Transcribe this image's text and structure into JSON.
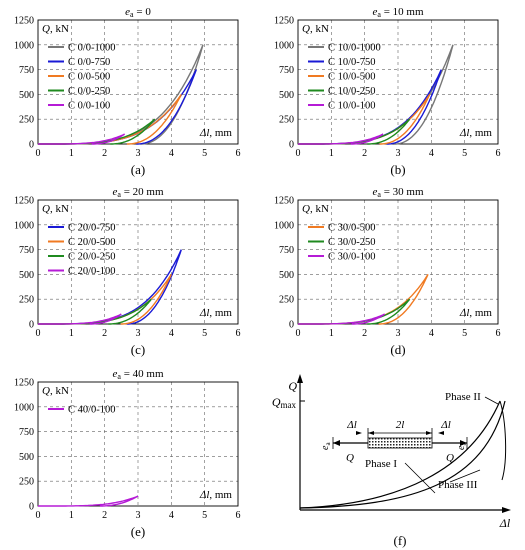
{
  "chart_data": [
    {
      "type": "line",
      "panel_label": "(a)",
      "title": "e_a = 0",
      "title_parts": {
        "sym": "e",
        "sub": "a",
        "rest": " = 0"
      },
      "ylabel": "Q, kN",
      "xlabel": "Δl, mm",
      "xlim": [
        0,
        6
      ],
      "ylim": [
        0,
        1250
      ],
      "xticks": [
        "0",
        "1",
        "2",
        "3",
        "4",
        "5",
        "6"
      ],
      "yticks": [
        "0",
        "250",
        "500",
        "750",
        "1000",
        "1250"
      ],
      "grid": "dashed",
      "legend_position": "top-left",
      "series": [
        {
          "name": "C 0/0-1000",
          "color": "#777777",
          "peak_x": 4.95,
          "peak_y": 1000
        },
        {
          "name": "C 0/0-750",
          "color": "#1a1ad6",
          "peak_x": 4.75,
          "peak_y": 750
        },
        {
          "name": "C 0/0-500",
          "color": "#f07a22",
          "peak_x": 4.3,
          "peak_y": 500
        },
        {
          "name": "C 0/0-250",
          "color": "#1f8a1f",
          "peak_x": 3.5,
          "peak_y": 250
        },
        {
          "name": "C 0/0-100",
          "color": "#b51bd6",
          "peak_x": 2.6,
          "peak_y": 100
        }
      ]
    },
    {
      "type": "line",
      "panel_label": "(b)",
      "title": "e_a = 10 mm",
      "title_parts": {
        "sym": "e",
        "sub": "a",
        "rest": " = 10 mm"
      },
      "ylabel": "Q, kN",
      "xlabel": "Δl, mm",
      "xlim": [
        0,
        6
      ],
      "ylim": [
        0,
        1250
      ],
      "xticks": [
        "0",
        "1",
        "2",
        "3",
        "4",
        "5",
        "6"
      ],
      "yticks": [
        "0",
        "250",
        "500",
        "750",
        "1000",
        "1250"
      ],
      "grid": "dashed",
      "legend_position": "top-left",
      "series": [
        {
          "name": "C 10/0-1000",
          "color": "#777777",
          "peak_x": 4.65,
          "peak_y": 1000
        },
        {
          "name": "C 10/0-750",
          "color": "#1a1ad6",
          "peak_x": 4.3,
          "peak_y": 750
        },
        {
          "name": "C 10/0-500",
          "color": "#f07a22",
          "peak_x": 3.95,
          "peak_y": 500
        },
        {
          "name": "C 10/0-250",
          "color": "#1f8a1f",
          "peak_x": 3.35,
          "peak_y": 250
        },
        {
          "name": "C 10/0-100",
          "color": "#b51bd6",
          "peak_x": 2.55,
          "peak_y": 100
        }
      ]
    },
    {
      "type": "line",
      "panel_label": "(c)",
      "title": "e_a = 20 mm",
      "title_parts": {
        "sym": "e",
        "sub": "a",
        "rest": " = 20 mm"
      },
      "ylabel": "Q, kN",
      "xlabel": "Δl, mm",
      "xlim": [
        0,
        6
      ],
      "ylim": [
        0,
        1250
      ],
      "xticks": [
        "0",
        "1",
        "2",
        "3",
        "4",
        "5",
        "6"
      ],
      "yticks": [
        "0",
        "250",
        "500",
        "750",
        "1000",
        "1250"
      ],
      "grid": "dashed",
      "legend_position": "top-left",
      "series": [
        {
          "name": "C 20/0-750",
          "color": "#1a1ad6",
          "peak_x": 4.3,
          "peak_y": 750
        },
        {
          "name": "C 20/0-500",
          "color": "#f07a22",
          "peak_x": 4.0,
          "peak_y": 500
        },
        {
          "name": "C 20/0-250",
          "color": "#1f8a1f",
          "peak_x": 3.4,
          "peak_y": 250
        },
        {
          "name": "C 20/0-100",
          "color": "#b51bd6",
          "peak_x": 2.5,
          "peak_y": 100
        }
      ]
    },
    {
      "type": "line",
      "panel_label": "(d)",
      "title": "e_a = 30 mm",
      "title_parts": {
        "sym": "e",
        "sub": "a",
        "rest": " = 30 mm"
      },
      "ylabel": "Q, kN",
      "xlabel": "Δl, mm",
      "xlim": [
        0,
        6
      ],
      "ylim": [
        0,
        1250
      ],
      "xticks": [
        "0",
        "1",
        "2",
        "3",
        "4",
        "5",
        "6"
      ],
      "yticks": [
        "0",
        "250",
        "500",
        "750",
        "1000",
        "1250"
      ],
      "grid": "dashed",
      "legend_position": "top-left",
      "series": [
        {
          "name": "C 30/0-500",
          "color": "#f07a22",
          "peak_x": 3.9,
          "peak_y": 500
        },
        {
          "name": "C 30/0-250",
          "color": "#1f8a1f",
          "peak_x": 3.35,
          "peak_y": 250
        },
        {
          "name": "C 30/0-100",
          "color": "#b51bd6",
          "peak_x": 2.6,
          "peak_y": 100
        }
      ]
    },
    {
      "type": "line",
      "panel_label": "(e)",
      "title": "e_a = 40 mm",
      "title_parts": {
        "sym": "e",
        "sub": "a",
        "rest": " = 40 mm"
      },
      "ylabel": "Q, kN",
      "xlabel": "Δl, mm",
      "xlim": [
        0,
        6
      ],
      "ylim": [
        0,
        1250
      ],
      "xticks": [
        "0",
        "1",
        "2",
        "3",
        "4",
        "5",
        "6"
      ],
      "yticks": [
        "0",
        "250",
        "500",
        "750",
        "1000",
        "1250"
      ],
      "grid": "dashed",
      "legend_position": "top-left",
      "series": [
        {
          "name": "C 40/0-100",
          "color": "#b51bd6",
          "peak_x": 3.0,
          "peak_y": 100
        }
      ]
    }
  ],
  "schematic": {
    "panel_label": "(f)",
    "y_axis_label": "Q",
    "y_max_label": "Q",
    "y_max_sub": "max",
    "x_axis_label": "Δl",
    "phases": [
      "Phase II",
      "Phase I",
      "Phase III"
    ],
    "specimen": {
      "length_label": "2l",
      "elongation_label": "Δl",
      "load_label": "Q",
      "eccentricity_label": "e",
      "eccentricity_sub": "a"
    }
  }
}
